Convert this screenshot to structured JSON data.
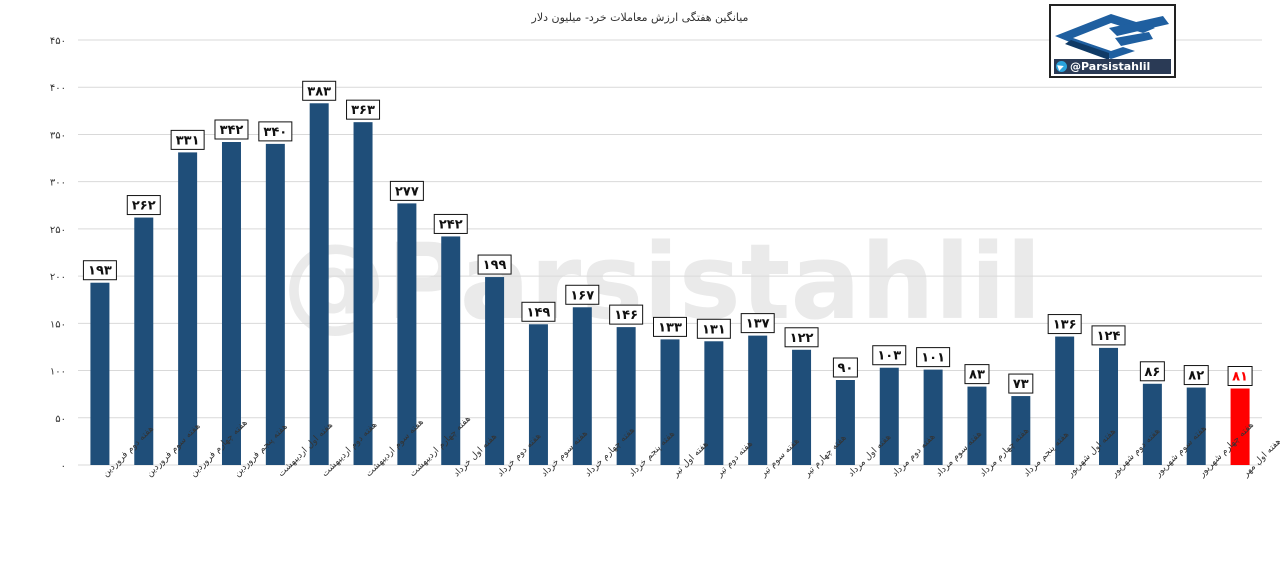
{
  "colors": {
    "bar": "#1f4e79",
    "highlight_bar": "#ff0000",
    "grid": "#d9d9d9",
    "highlight_label": "#ff0000"
  },
  "logo": {
    "handle": "@Parsistahlil",
    "icon": "telegram-icon"
  },
  "watermark": "@Parsistahlil",
  "chart_data": {
    "type": "bar",
    "title": "میانگین هفتگی ارزش معاملات خرد- میلیون دلار",
    "grid": true,
    "ylim": [
      0,
      450
    ],
    "yticks": [
      "۰",
      "۵۰",
      "۱۰۰",
      "۱۵۰",
      "۲۰۰",
      "۲۵۰",
      "۳۰۰",
      "۳۵۰",
      "۴۰۰",
      "۴۵۰"
    ],
    "ytick_values": [
      0,
      50,
      100,
      150,
      200,
      250,
      300,
      350,
      400,
      450
    ],
    "categories": [
      "هفته دوم فروردین",
      "هفته سوم فروردین",
      "هفته چهارم فروردین",
      "هفته پنجم فروردین",
      "هفته اول اردیبهشت",
      "هفته دوم اردیبهشت",
      "هفته سوم اردیبهشت",
      "هفته چهارم اردیبهشت",
      "هفته اول خرداد",
      "هفته دوم خرداد",
      "هفته سوم خرداد",
      "هفته چهارم خرداد",
      "هفته پنجم خرداد",
      "هفته اول تیر",
      "هفته دوم تیر",
      "هفته سوم تیر",
      "هفته چهارم تیر",
      "هفته اول مرداد",
      "هفته دوم مرداد",
      "هفته سوم مرداد",
      "هفته چهارم مرداد",
      "هفته پنجم مرداد",
      "هفته اول شهریور",
      "هفته دوم شهریور",
      "هفته سوم شهریور",
      "هفته چهارم شهریور",
      "هفته اول مهر"
    ],
    "values": [
      193,
      262,
      331,
      342,
      340,
      383,
      363,
      277,
      242,
      199,
      149,
      167,
      146,
      133,
      131,
      137,
      122,
      90,
      103,
      101,
      83,
      73,
      136,
      124,
      86,
      82,
      81
    ],
    "labels": [
      "۱۹۳",
      "۲۶۲",
      "۳۳۱",
      "۳۴۲",
      "۳۴۰",
      "۳۸۳",
      "۳۶۳",
      "۲۷۷",
      "۲۴۲",
      "۱۹۹",
      "۱۴۹",
      "۱۶۷",
      "۱۴۶",
      "۱۳۳",
      "۱۳۱",
      "۱۳۷",
      "۱۲۲",
      "۹۰",
      "۱۰۳",
      "۱۰۱",
      "۸۳",
      "۷۳",
      "۱۳۶",
      "۱۲۴",
      "۸۶",
      "۸۲",
      "۸۱"
    ],
    "highlight_index": 26
  }
}
